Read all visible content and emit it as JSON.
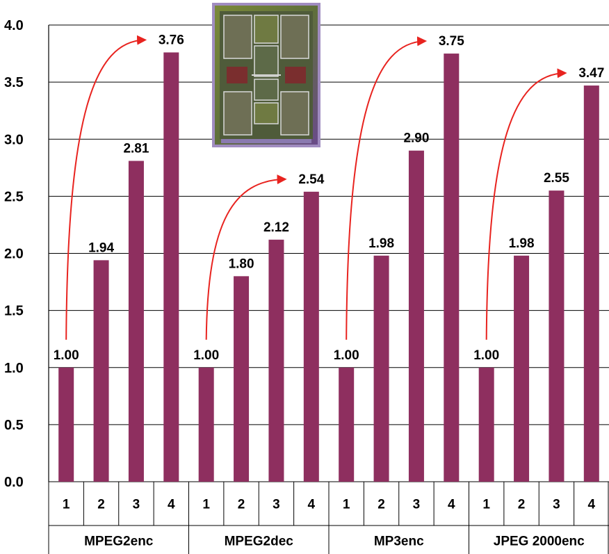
{
  "chart_data": {
    "type": "bar",
    "title": "",
    "xlabel": "",
    "ylabel": "",
    "ylim": [
      0,
      4.0
    ],
    "yticks": [
      "0.0",
      "0.5",
      "1.0",
      "1.5",
      "2.0",
      "2.5",
      "3.0",
      "3.5",
      "4.0"
    ],
    "grid": "horizontal",
    "legend": "none",
    "bar_color": "#8e2f5f",
    "arrow_color": "#e8231f",
    "groups": [
      {
        "name": "MPEG2enc",
        "categories": [
          "1",
          "2",
          "3",
          "4"
        ],
        "values": [
          1.0,
          1.94,
          2.81,
          3.76
        ],
        "labels": [
          "1.00",
          "1.94",
          "2.81",
          "3.76"
        ]
      },
      {
        "name": "MPEG2dec",
        "categories": [
          "1",
          "2",
          "3",
          "4"
        ],
        "values": [
          1.0,
          1.8,
          2.12,
          2.54
        ],
        "labels": [
          "1.00",
          "1.80",
          "2.12",
          "2.54"
        ]
      },
      {
        "name": "MP3enc",
        "categories": [
          "1",
          "2",
          "3",
          "4"
        ],
        "values": [
          1.0,
          1.98,
          2.9,
          3.75
        ],
        "labels": [
          "1.00",
          "1.98",
          "2.90",
          "3.75"
        ]
      },
      {
        "name": "JPEG 2000enc",
        "categories": [
          "1",
          "2",
          "3",
          "4"
        ],
        "values": [
          1.0,
          1.98,
          2.55,
          3.47
        ],
        "labels": [
          "1.00",
          "1.98",
          "2.55",
          "3.47"
        ]
      }
    ],
    "inset_image": "chip-die-photo"
  }
}
